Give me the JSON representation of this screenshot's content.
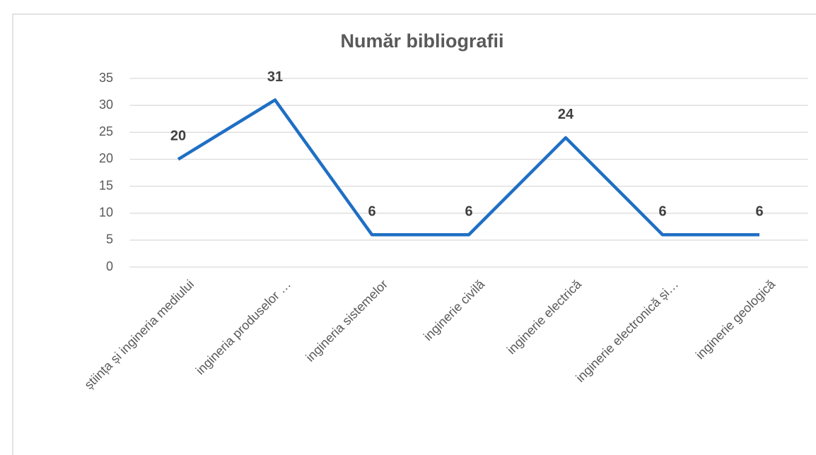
{
  "chart_data": {
    "type": "line",
    "title": "Număr bibliografii",
    "categories": [
      "știința și ingineria mediului",
      "ingineria produselor …",
      "ingineria sistemelor",
      "inginerie civilă",
      "inginerie electrică",
      "inginerie electronică și…",
      "inginerie geologică"
    ],
    "values": [
      20,
      31,
      6,
      6,
      24,
      6,
      6
    ],
    "color": "#1f6fc4",
    "ylim": [
      0,
      35
    ],
    "yticks": [
      0,
      5,
      10,
      15,
      20,
      25,
      30,
      35
    ],
    "grid": true,
    "data_labels": true
  }
}
